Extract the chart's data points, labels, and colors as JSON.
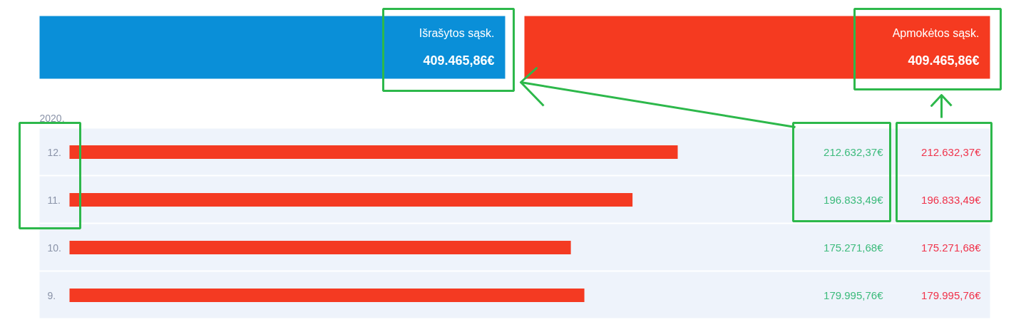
{
  "chart_data": {
    "type": "bar",
    "orientation": "horizontal",
    "categories": [
      "12.",
      "11.",
      "10.",
      "9."
    ],
    "series": [
      {
        "color": "#f43a22",
        "values": [
          212632.37,
          196833.49,
          175271.68,
          179995.76
        ],
        "value_labels": [
          "212.632,37€",
          "196.833,49€",
          "175.271,68€",
          "179.995,76€"
        ]
      }
    ],
    "annotations": [
      "Išrašytos sąsk.",
      "409.465,86€",
      "Apmokėtos sąsk.",
      "409.465,86€",
      "2020.",
      "212.632,37€",
      "196.833,49€",
      "175.271,68€",
      "179.995,76€"
    ]
  }
}
